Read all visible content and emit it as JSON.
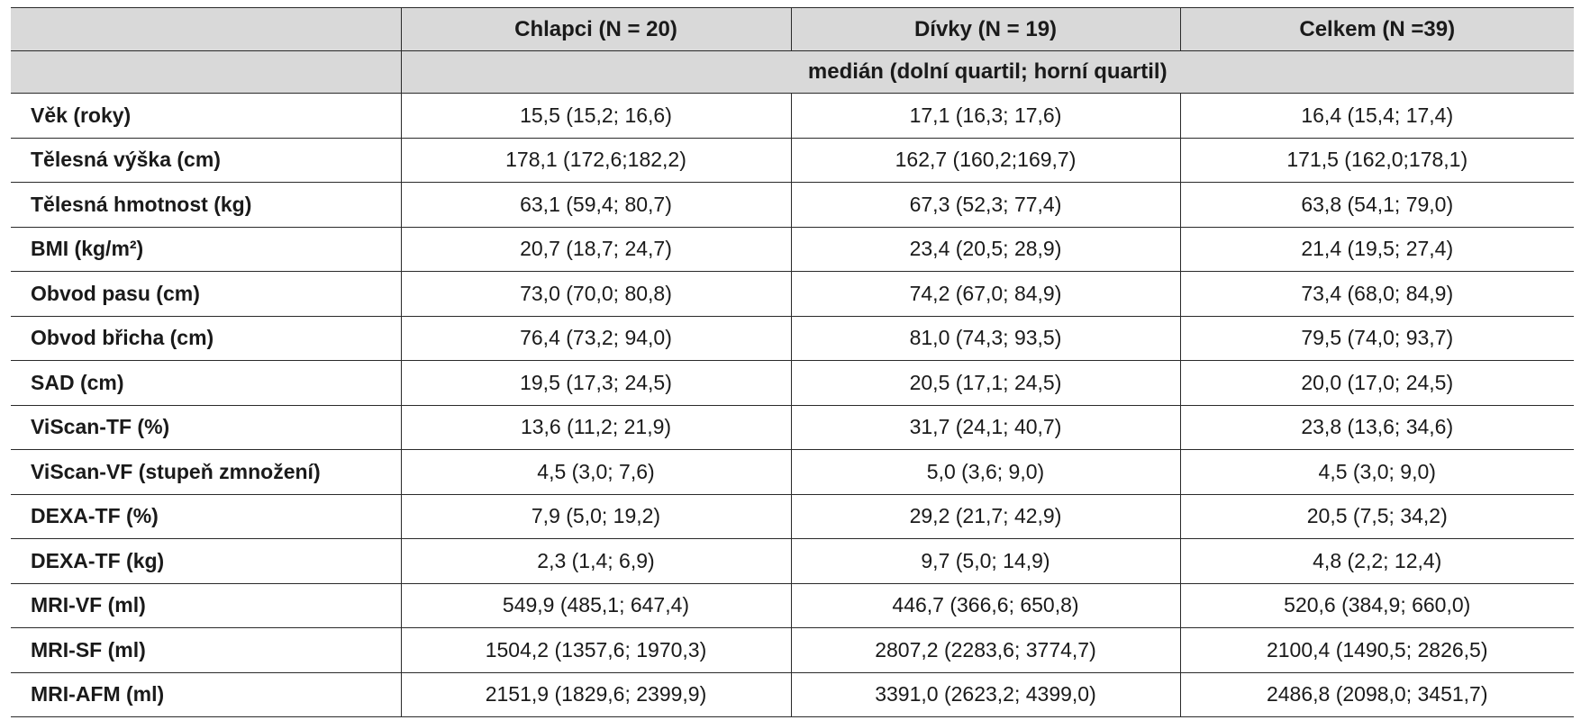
{
  "table": {
    "columns": [
      "",
      "Chlapci (N = 20)",
      "Dívky (N = 19)",
      "Celkem (N =39)"
    ],
    "subheader": "medián (dolní quartil; horní quartil)",
    "rows": [
      {
        "label": "Věk (roky)",
        "values": [
          "15,5 (15,2; 16,6)",
          "17,1 (16,3; 17,6)",
          "16,4 (15,4; 17,4)"
        ]
      },
      {
        "label": "Tělesná výška (cm)",
        "values": [
          "178,1 (172,6;182,2)",
          "162,7 (160,2;169,7)",
          "171,5 (162,0;178,1)"
        ]
      },
      {
        "label": "Tělesná hmotnost (kg)",
        "values": [
          "63,1 (59,4; 80,7)",
          "67,3 (52,3; 77,4)",
          "63,8 (54,1; 79,0)"
        ]
      },
      {
        "label": "BMI (kg/m²)",
        "values": [
          "20,7 (18,7; 24,7)",
          "23,4 (20,5; 28,9)",
          "21,4 (19,5; 27,4)"
        ]
      },
      {
        "label": "Obvod pasu (cm)",
        "values": [
          "73,0 (70,0; 80,8)",
          "74,2 (67,0; 84,9)",
          "73,4 (68,0; 84,9)"
        ]
      },
      {
        "label": "Obvod břicha (cm)",
        "values": [
          "76,4 (73,2; 94,0)",
          "81,0 (74,3; 93,5)",
          "79,5 (74,0; 93,7)"
        ]
      },
      {
        "label": "SAD (cm)",
        "values": [
          "19,5 (17,3; 24,5)",
          "20,5 (17,1; 24,5)",
          "20,0 (17,0; 24,5)"
        ]
      },
      {
        "label": "ViScan-TF (%)",
        "values": [
          "13,6 (11,2; 21,9)",
          "31,7 (24,1; 40,7)",
          "23,8 (13,6; 34,6)"
        ]
      },
      {
        "label": "ViScan-VF (stupeň zmnožení)",
        "values": [
          "4,5 (3,0; 7,6)",
          "5,0 (3,6; 9,0)",
          "4,5 (3,0; 9,0)"
        ]
      },
      {
        "label": "DEXA-TF (%)",
        "values": [
          "7,9 (5,0; 19,2)",
          "29,2 (21,7; 42,9)",
          "20,5 (7,5; 34,2)"
        ]
      },
      {
        "label": "DEXA-TF (kg)",
        "values": [
          "2,3 (1,4; 6,9)",
          "9,7 (5,0; 14,9)",
          "4,8 (2,2; 12,4)"
        ]
      },
      {
        "label": "MRI-VF (ml)",
        "values": [
          "549,9 (485,1; 647,4)",
          "446,7 (366,6; 650,8)",
          "520,6 (384,9; 660,0)"
        ]
      },
      {
        "label": "MRI-SF (ml)",
        "values": [
          "1504,2 (1357,6; 1970,3)",
          "2807,2 (2283,6; 3774,7)",
          "2100,4 (1490,5; 2826,5)"
        ]
      },
      {
        "label": "MRI-AFM (ml)",
        "values": [
          "2151,9 (1829,6; 2399,9)",
          "3391,0 (2623,2; 4399,0)",
          "2486,8 (2098,0; 3451,7)"
        ]
      }
    ]
  }
}
